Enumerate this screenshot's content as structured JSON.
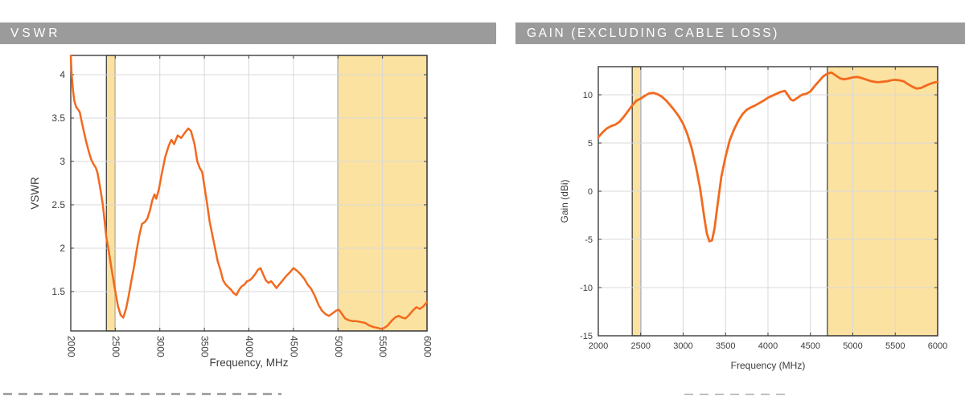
{
  "panels": [
    {
      "title": "VSWR"
    },
    {
      "title": "GAIN (EXCLUDING CABLE LOSS)"
    }
  ],
  "colors": {
    "background": "#ffffff",
    "title_bar_bg": "#9b9b9b",
    "title_text": "#ffffff",
    "line": "#f26a1e",
    "band_fill": "#fce2a0",
    "band_edge": "#454545",
    "plot_border": "#3d3d3d",
    "grid": "#d9d9d9",
    "tick_text": "#3c3c3c"
  },
  "chart_data": [
    {
      "id": "vswr",
      "type": "line",
      "title": "VSWR",
      "xlabel": "Frequency, MHz",
      "ylabel": "VSWR",
      "xlim": [
        2000,
        6000
      ],
      "ylim": [
        1.046,
        4.222
      ],
      "xticks": [
        2000,
        2500,
        3000,
        3500,
        4000,
        4500,
        5000,
        5500,
        6000
      ],
      "yticks": [
        1.5,
        2,
        2.5,
        3,
        3.5,
        4
      ],
      "xtick_rotation": 90,
      "grid": true,
      "highlight_bands_mhz": [
        [
          2400,
          2500
        ],
        [
          5000,
          6000
        ]
      ],
      "series": [
        {
          "name": "VSWR",
          "x": [
            2000,
            2010,
            2025,
            2040,
            2060,
            2080,
            2100,
            2125,
            2150,
            2175,
            2200,
            2230,
            2255,
            2280,
            2300,
            2330,
            2360,
            2400,
            2430,
            2460,
            2500,
            2530,
            2560,
            2590,
            2620,
            2650,
            2680,
            2710,
            2740,
            2770,
            2800,
            2830,
            2860,
            2890,
            2915,
            2940,
            2960,
            2990,
            3020,
            3060,
            3100,
            3130,
            3160,
            3200,
            3240,
            3280,
            3320,
            3350,
            3390,
            3420,
            3450,
            3475,
            3500,
            3530,
            3560,
            3590,
            3620,
            3650,
            3680,
            3710,
            3740,
            3770,
            3800,
            3830,
            3860,
            3890,
            3920,
            3950,
            3980,
            4010,
            4040,
            4070,
            4100,
            4130,
            4160,
            4190,
            4220,
            4250,
            4280,
            4310,
            4340,
            4380,
            4420,
            4460,
            4500,
            4540,
            4580,
            4620,
            4660,
            4700,
            4740,
            4780,
            4820,
            4860,
            4900,
            4940,
            4980,
            5010,
            5040,
            5080,
            5120,
            5160,
            5200,
            5250,
            5300,
            5350,
            5400,
            5450,
            5480,
            5520,
            5560,
            5600,
            5640,
            5680,
            5720,
            5760,
            5800,
            5840,
            5880,
            5920,
            5960,
            6000
          ],
          "y": [
            4.22,
            4.0,
            3.82,
            3.7,
            3.63,
            3.6,
            3.57,
            3.45,
            3.33,
            3.22,
            3.12,
            3.02,
            2.97,
            2.93,
            2.87,
            2.7,
            2.5,
            2.12,
            1.95,
            1.75,
            1.5,
            1.33,
            1.23,
            1.2,
            1.3,
            1.45,
            1.62,
            1.78,
            1.98,
            2.15,
            2.28,
            2.3,
            2.34,
            2.44,
            2.55,
            2.62,
            2.57,
            2.68,
            2.85,
            3.05,
            3.18,
            3.25,
            3.2,
            3.3,
            3.27,
            3.33,
            3.38,
            3.35,
            3.2,
            3.0,
            2.92,
            2.88,
            2.72,
            2.52,
            2.3,
            2.15,
            2.0,
            1.85,
            1.75,
            1.63,
            1.58,
            1.55,
            1.52,
            1.48,
            1.46,
            1.52,
            1.56,
            1.58,
            1.62,
            1.63,
            1.66,
            1.7,
            1.75,
            1.77,
            1.7,
            1.63,
            1.6,
            1.62,
            1.58,
            1.54,
            1.58,
            1.63,
            1.68,
            1.72,
            1.77,
            1.74,
            1.7,
            1.65,
            1.58,
            1.53,
            1.45,
            1.35,
            1.28,
            1.24,
            1.22,
            1.25,
            1.28,
            1.29,
            1.25,
            1.19,
            1.17,
            1.16,
            1.16,
            1.15,
            1.14,
            1.11,
            1.09,
            1.08,
            1.07,
            1.08,
            1.11,
            1.16,
            1.2,
            1.22,
            1.2,
            1.19,
            1.23,
            1.28,
            1.32,
            1.3,
            1.33,
            1.38
          ]
        }
      ]
    },
    {
      "id": "gain",
      "type": "line",
      "title": "GAIN (EXCLUDING CABLE LOSS)",
      "xlabel": "Frequency (MHz)",
      "ylabel": "Gain (dBi)",
      "xlim": [
        2000,
        6000
      ],
      "ylim": [
        -15,
        12.92
      ],
      "xticks": [
        2000,
        2500,
        3000,
        3500,
        4000,
        4500,
        5000,
        5500,
        6000
      ],
      "yticks": [
        -15,
        -10,
        -5,
        0,
        5,
        10
      ],
      "xtick_rotation": 0,
      "grid": true,
      "highlight_bands_mhz": [
        [
          2400,
          2500
        ],
        [
          4700,
          6000
        ]
      ],
      "series": [
        {
          "name": "Gain",
          "x": [
            2000,
            2050,
            2100,
            2150,
            2200,
            2250,
            2300,
            2350,
            2400,
            2450,
            2500,
            2550,
            2600,
            2650,
            2700,
            2750,
            2800,
            2850,
            2900,
            2950,
            3000,
            3050,
            3100,
            3150,
            3200,
            3250,
            3280,
            3310,
            3340,
            3370,
            3400,
            3450,
            3500,
            3550,
            3600,
            3650,
            3700,
            3750,
            3800,
            3850,
            3900,
            3950,
            4000,
            4050,
            4100,
            4150,
            4200,
            4240,
            4270,
            4300,
            4350,
            4400,
            4450,
            4500,
            4550,
            4600,
            4650,
            4700,
            4750,
            4800,
            4850,
            4900,
            4950,
            5000,
            5050,
            5100,
            5150,
            5200,
            5250,
            5300,
            5350,
            5400,
            5450,
            5500,
            5550,
            5600,
            5650,
            5700,
            5750,
            5800,
            5850,
            5900,
            5950,
            6000
          ],
          "y": [
            5.6,
            6.1,
            6.5,
            6.75,
            6.9,
            7.2,
            7.7,
            8.3,
            8.9,
            9.4,
            9.6,
            9.9,
            10.15,
            10.2,
            10.05,
            9.8,
            9.4,
            8.9,
            8.35,
            7.75,
            7.0,
            5.9,
            4.5,
            2.6,
            0.3,
            -2.8,
            -4.4,
            -5.2,
            -5.1,
            -3.9,
            -1.8,
            1.5,
            3.6,
            5.3,
            6.4,
            7.3,
            8.0,
            8.45,
            8.7,
            8.9,
            9.15,
            9.4,
            9.7,
            9.9,
            10.1,
            10.3,
            10.4,
            9.9,
            9.5,
            9.4,
            9.7,
            10.0,
            10.1,
            10.35,
            10.9,
            11.4,
            11.9,
            12.2,
            12.3,
            12.0,
            11.7,
            11.6,
            11.7,
            11.8,
            11.85,
            11.75,
            11.6,
            11.45,
            11.35,
            11.3,
            11.35,
            11.4,
            11.5,
            11.55,
            11.5,
            11.4,
            11.1,
            10.85,
            10.65,
            10.7,
            10.9,
            11.1,
            11.25,
            11.35
          ]
        }
      ]
    }
  ]
}
